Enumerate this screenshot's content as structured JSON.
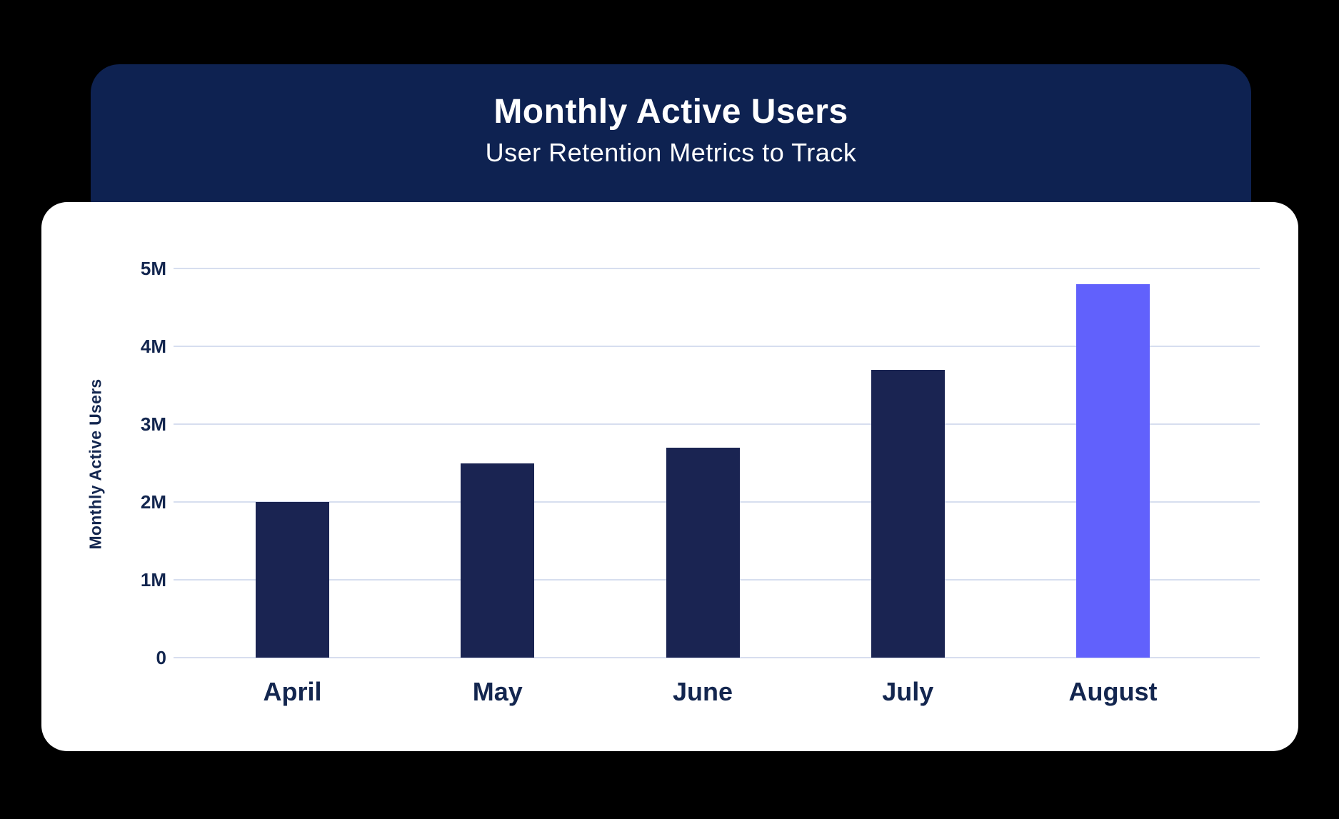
{
  "header": {
    "title": "Monthly Active Users",
    "subtitle": "User Retention Metrics to Track"
  },
  "chart_data": {
    "type": "bar",
    "title": "Monthly Active Users",
    "subtitle": "User Retention Metrics to Track",
    "categories": [
      "April",
      "May",
      "June",
      "July",
      "August"
    ],
    "values": [
      2.0,
      2.5,
      2.7,
      3.7,
      4.8
    ],
    "value_unit": "M (millions of users)",
    "xlabel": "",
    "ylabel": "Monthly Active Users",
    "ylim": [
      0,
      5
    ],
    "ytick_labels": [
      "0",
      "1M",
      "2M",
      "3M",
      "4M",
      "5M"
    ],
    "grid": true,
    "legend": "none",
    "highlight_index": 4,
    "colors": {
      "page_bg": "#000000",
      "header_bg": "#0e2251",
      "card_bg": "#ffffff",
      "bar": "#1a2452",
      "bar_highlight": "#6161fc",
      "gridline": "#d7deef",
      "label_text": "#13264f",
      "header_text": "#ffffff"
    }
  }
}
